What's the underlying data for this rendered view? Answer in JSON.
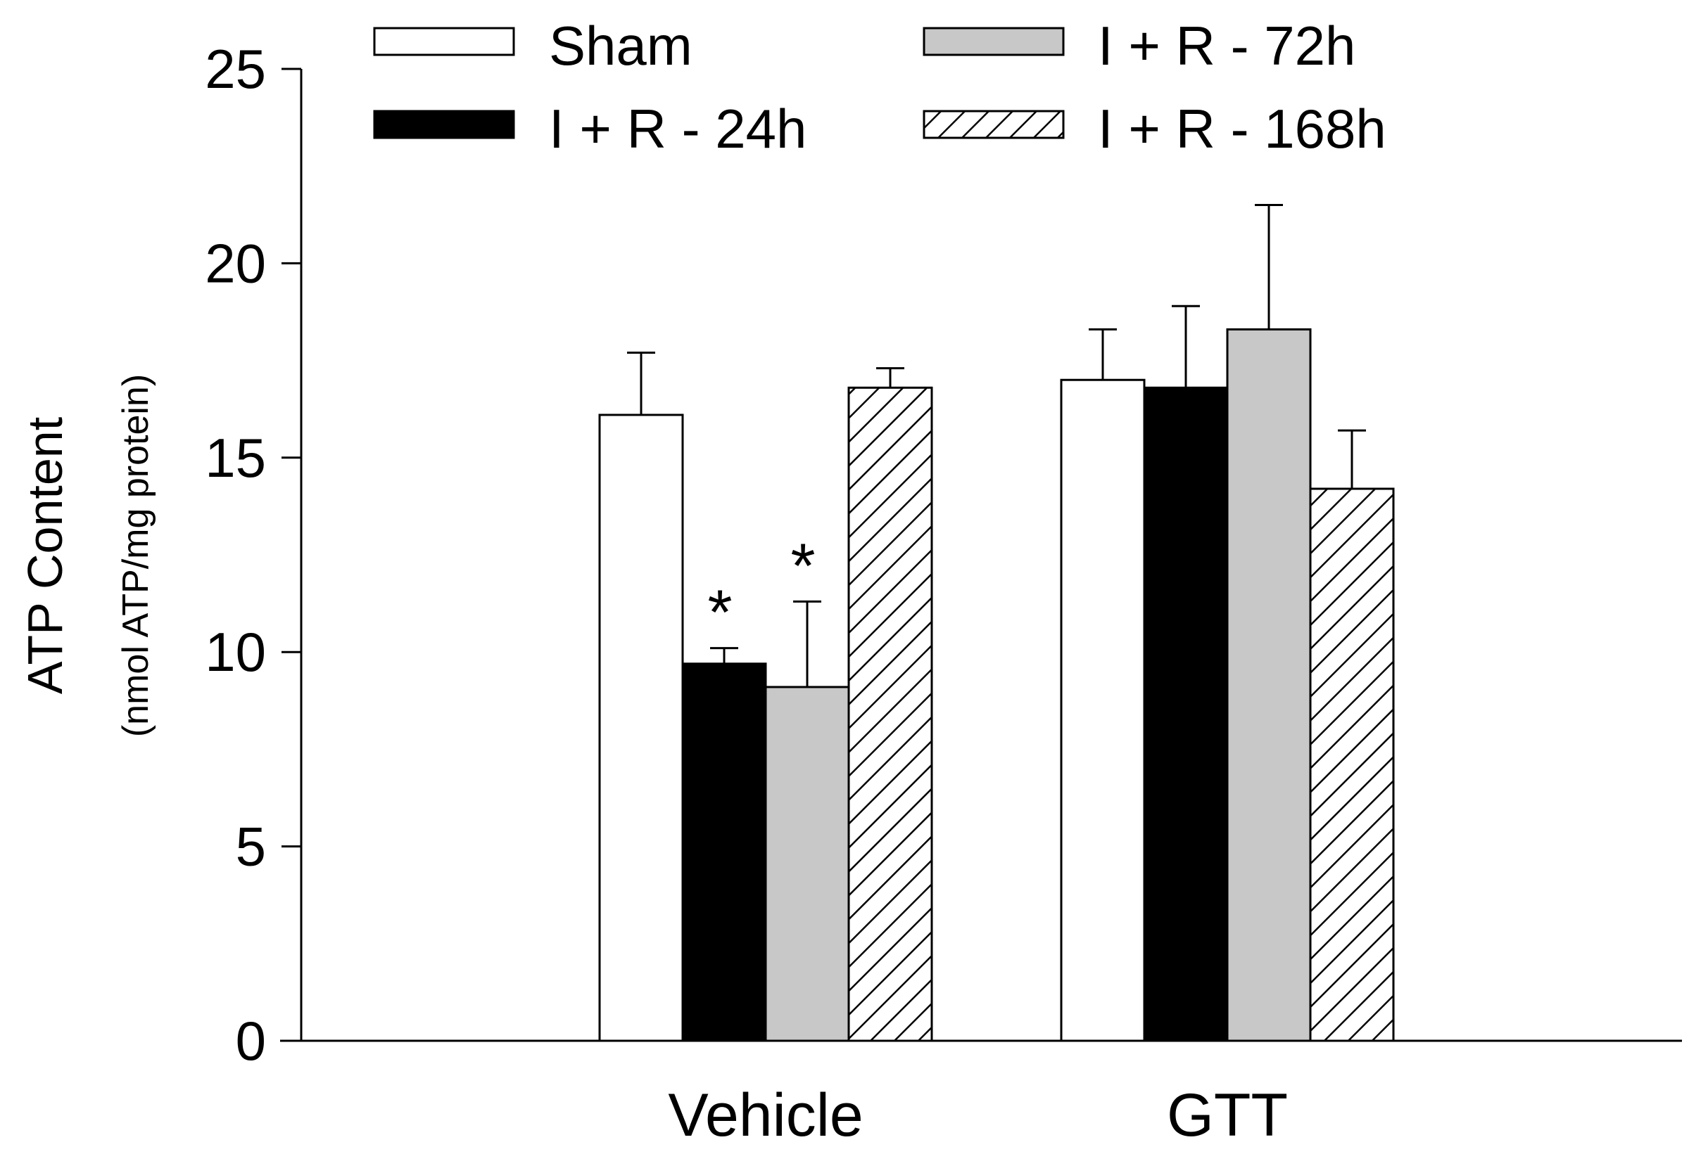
{
  "chart_data": {
    "type": "bar",
    "title": "",
    "xlabel": "",
    "ylabel": "ATP Content",
    "ylabel_sub": "(nmol ATP/mg protein)",
    "ylim": [
      0,
      25
    ],
    "yticks": [
      0,
      5,
      10,
      15,
      20,
      25
    ],
    "categories": [
      "Vehicle",
      "GTT"
    ],
    "legend": {
      "position": "top",
      "columns": 2
    },
    "series": [
      {
        "name": "Sham",
        "fill": "white",
        "values": [
          16.1,
          17.0
        ],
        "errors": [
          1.6,
          1.3
        ]
      },
      {
        "name": "I + R - 24h",
        "fill": "black",
        "values": [
          9.7,
          16.8
        ],
        "errors": [
          0.4,
          2.1
        ]
      },
      {
        "name": "I + R - 72h",
        "fill": "gray",
        "values": [
          9.1,
          18.3
        ],
        "errors": [
          2.2,
          3.2
        ]
      },
      {
        "name": "I + R - 168h",
        "fill": "hatch",
        "values": [
          16.8,
          14.2
        ],
        "errors": [
          0.5,
          1.5
        ]
      }
    ],
    "annotations": [
      {
        "category": "Vehicle",
        "series": "I + R - 24h",
        "text": "*"
      },
      {
        "category": "Vehicle",
        "series": "I + R - 72h",
        "text": "*"
      }
    ],
    "colors": {
      "white": "#ffffff",
      "black": "#000000",
      "gray": "#c8c8c8"
    }
  }
}
